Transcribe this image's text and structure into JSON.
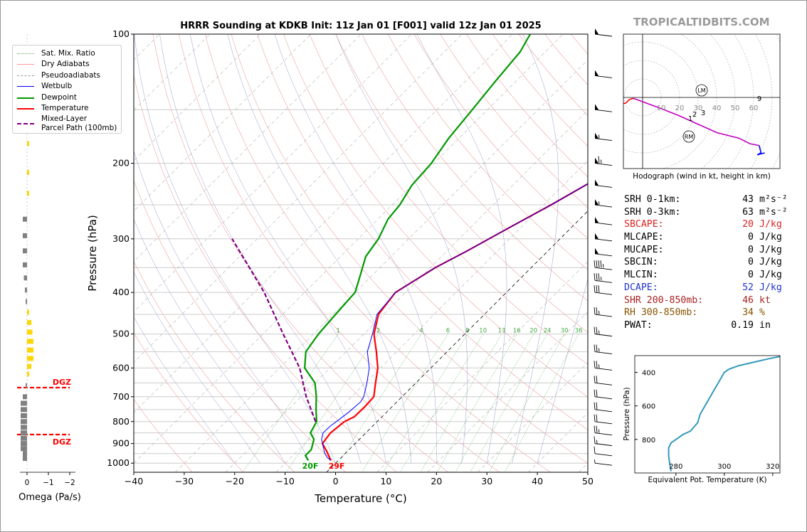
{
  "brand": "TROPICALTIDBITS.COM",
  "chart_data": [
    {
      "type": "line",
      "title": "HRRR Sounding at KDKB Init: 11z Jan 01 [F001] valid 12z Jan 01 2025",
      "xlabel": "Temperature (°C)",
      "ylabel": "Pressure (hPa)",
      "xlim": [
        -40,
        50
      ],
      "ylim": [
        1050,
        100
      ],
      "y_scale": "log",
      "x_ticks": [
        -40,
        -30,
        -20,
        -10,
        0,
        10,
        20,
        30,
        40,
        50
      ],
      "y_ticks": [
        100,
        200,
        300,
        400,
        500,
        600,
        700,
        800,
        900,
        1000
      ],
      "grid": true,
      "legend_position": "outside-left",
      "mixing_ratio_labels": [
        "1",
        "2",
        "4",
        "6",
        "8",
        "10",
        "13",
        "16",
        "20",
        "24",
        "30",
        "36"
      ],
      "surface_labels": {
        "dewpoint": "20F",
        "temperature": "29F"
      },
      "series": [
        {
          "name": "Temperature",
          "color": "#ff0000",
          "points": [
            [
              -1.5,
              985
            ],
            [
              -4,
              940
            ],
            [
              -6.5,
              900
            ],
            [
              -7,
              850
            ],
            [
              -6.5,
              800
            ],
            [
              -5.5,
              780
            ],
            [
              -5.4,
              740
            ],
            [
              -5.6,
              700
            ],
            [
              -8,
              650
            ],
            [
              -10.5,
              600
            ],
            [
              -14,
              550
            ],
            [
              -18,
              500
            ],
            [
              -21,
              450
            ],
            [
              -22,
              400
            ],
            [
              -19,
              350
            ],
            [
              -16,
              320
            ],
            [
              -12,
              280
            ],
            [
              -8.5,
              250
            ],
            [
              -5,
              220
            ],
            [
              -1,
              190
            ],
            [
              1,
              170
            ],
            [
              6,
              130
            ],
            [
              8,
              110
            ],
            [
              8.5,
              100
            ]
          ]
        },
        {
          "name": "Dewpoint",
          "color": "#009900",
          "points": [
            [
              -6,
              985
            ],
            [
              -7.5,
              960
            ],
            [
              -7.5,
              930
            ],
            [
              -9,
              880
            ],
            [
              -11,
              850
            ],
            [
              -12,
              800
            ],
            [
              -14.5,
              750
            ],
            [
              -17,
              700
            ],
            [
              -20,
              650
            ],
            [
              -25,
              600
            ],
            [
              -28,
              550
            ],
            [
              -29,
              500
            ],
            [
              -29.5,
              450
            ],
            [
              -30,
              400
            ],
            [
              -32,
              370
            ],
            [
              -35,
              330
            ],
            [
              -36,
              300
            ],
            [
              -38,
              270
            ],
            [
              -38.5,
              250
            ],
            [
              -40,
              225
            ],
            [
              -40.5,
              200
            ],
            [
              -42,
              175
            ],
            [
              -43,
              150
            ],
            [
              -44,
              130
            ],
            [
              -45,
              110
            ],
            [
              -46.5,
              100
            ]
          ]
        },
        {
          "name": "Wetbulb",
          "color": "#0000ff",
          "points": [
            [
              -1.5,
              985
            ],
            [
              -2.8,
              970
            ],
            [
              -4,
              950
            ],
            [
              -5.5,
              920
            ],
            [
              -7.5,
              880
            ],
            [
              -8.5,
              850
            ],
            [
              -8.4,
              820
            ],
            [
              -8.1,
              800
            ],
            [
              -7.5,
              760
            ],
            [
              -7.2,
              720
            ],
            [
              -7.6,
              700
            ],
            [
              -9.7,
              650
            ],
            [
              -12.2,
              600
            ],
            [
              -15.8,
              550
            ],
            [
              -18.3,
              500
            ],
            [
              -21.3,
              450
            ],
            [
              -22,
              400
            ],
            [
              -19,
              350
            ],
            [
              -16,
              320
            ],
            [
              -12,
              280
            ],
            [
              -8.5,
              250
            ],
            [
              -5,
              220
            ],
            [
              -1,
              190
            ],
            [
              1,
              170
            ],
            [
              6,
              130
            ],
            [
              8,
              110
            ],
            [
              8.5,
              100
            ]
          ]
        },
        {
          "name": "Mixed-Layer Parcel Path (100mb)",
          "color": "#800080",
          "dash": true,
          "points": [
            [
              -12.2,
              800
            ],
            [
              -19,
              700
            ],
            [
              -26,
              600
            ],
            [
              -36,
              500
            ],
            [
              -48,
              400
            ],
            [
              -65,
              300
            ]
          ]
        }
      ],
      "dgz_labels": [
        "DGZ",
        "DGZ"
      ],
      "wind_barbs": [
        {
          "p": 100,
          "kt": 50
        },
        {
          "p": 125,
          "kt": 50
        },
        {
          "p": 150,
          "kt": 50
        },
        {
          "p": 175,
          "kt": 55
        },
        {
          "p": 200,
          "kt": 65
        },
        {
          "p": 225,
          "kt": 50
        },
        {
          "p": 250,
          "kt": 55
        },
        {
          "p": 275,
          "kt": 50
        },
        {
          "p": 300,
          "kt": 50
        },
        {
          "p": 325,
          "kt": 50
        },
        {
          "p": 350,
          "kt": 45
        },
        {
          "p": 375,
          "kt": 35
        },
        {
          "p": 400,
          "kt": 30
        },
        {
          "p": 450,
          "kt": 25
        },
        {
          "p": 500,
          "kt": 25
        },
        {
          "p": 550,
          "kt": 25
        },
        {
          "p": 600,
          "kt": 25
        },
        {
          "p": 650,
          "kt": 20
        },
        {
          "p": 700,
          "kt": 20
        },
        {
          "p": 750,
          "kt": 20
        },
        {
          "p": 800,
          "kt": 20
        },
        {
          "p": 850,
          "kt": 25
        },
        {
          "p": 900,
          "kt": 15
        },
        {
          "p": 950,
          "kt": 10
        },
        {
          "p": 1000,
          "kt": 5
        }
      ]
    },
    {
      "type": "bar",
      "title": "",
      "xlabel": "Omega (Pa/s)",
      "x_ticks": [
        "0",
        "−1",
        "−2"
      ],
      "orientation": "horizontal",
      "bars": [
        {
          "p": 115,
          "v": -0.1,
          "color": "#ffd700"
        },
        {
          "p": 130,
          "v": -0.1,
          "color": "#ffd700"
        },
        {
          "p": 155,
          "v": -0.1,
          "color": "#ffd700"
        },
        {
          "p": 180,
          "v": -0.1,
          "color": "#ffd700"
        },
        {
          "p": 210,
          "v": -0.1,
          "color": "#ffd700"
        },
        {
          "p": 235,
          "v": -0.1,
          "color": "#ffd700"
        },
        {
          "p": 270,
          "v": 0.2,
          "color": "#808080"
        },
        {
          "p": 295,
          "v": 0.2,
          "color": "#808080"
        },
        {
          "p": 320,
          "v": 0.2,
          "color": "#808080"
        },
        {
          "p": 345,
          "v": 0.2,
          "color": "#808080"
        },
        {
          "p": 370,
          "v": 0.15,
          "color": "#808080"
        },
        {
          "p": 395,
          "v": 0.1,
          "color": "#808080"
        },
        {
          "p": 420,
          "v": 0.05,
          "color": "#808080"
        },
        {
          "p": 445,
          "v": -0.1,
          "color": "#ffd700"
        },
        {
          "p": 470,
          "v": -0.2,
          "color": "#ffd700"
        },
        {
          "p": 495,
          "v": -0.25,
          "color": "#ffd700"
        },
        {
          "p": 520,
          "v": -0.3,
          "color": "#ffd700"
        },
        {
          "p": 545,
          "v": -0.3,
          "color": "#ffd700"
        },
        {
          "p": 570,
          "v": -0.3,
          "color": "#ffd700"
        },
        {
          "p": 595,
          "v": -0.2,
          "color": "#ffd700"
        },
        {
          "p": 620,
          "v": -0.1,
          "color": "#ffd700"
        },
        {
          "p": 660,
          "v": 0.0,
          "color": "#808080"
        },
        {
          "p": 700,
          "v": 0.2,
          "color": "#808080"
        },
        {
          "p": 725,
          "v": 0.3,
          "color": "#808080"
        },
        {
          "p": 750,
          "v": 0.3,
          "color": "#808080"
        },
        {
          "p": 775,
          "v": 0.3,
          "color": "#808080"
        },
        {
          "p": 800,
          "v": 0.3,
          "color": "#808080"
        },
        {
          "p": 825,
          "v": 0.3,
          "color": "#808080"
        },
        {
          "p": 850,
          "v": 0.3,
          "color": "#808080"
        },
        {
          "p": 875,
          "v": 0.3,
          "color": "#808080"
        },
        {
          "p": 900,
          "v": 0.3,
          "color": "#808080"
        },
        {
          "p": 925,
          "v": 0.3,
          "color": "#808080"
        },
        {
          "p": 950,
          "v": 0.2,
          "color": "#808080"
        },
        {
          "p": 975,
          "v": 0.2,
          "color": "#808080"
        }
      ]
    },
    {
      "type": "line",
      "title": "Hodograph (wind in kt, height in km)",
      "ring_labels": [
        "10",
        "20",
        "30",
        "40",
        "50",
        "60"
      ],
      "markers": [
        "LM",
        "RM"
      ],
      "height_labels": [
        "1",
        "2",
        "3",
        "9"
      ],
      "series": [
        {
          "color": "#ff0000",
          "points": [
            [
              -14,
              4
            ],
            [
              -9,
              3
            ],
            [
              -7,
              1
            ]
          ]
        },
        {
          "color": "#ff0000",
          "points": [
            [
              -7,
              1
            ],
            [
              -5,
              0.5
            ]
          ]
        },
        {
          "color": "#c000c0",
          "points": [
            [
              -5,
              0.5
            ],
            [
              10,
              6
            ],
            [
              20,
              10
            ],
            [
              40,
              19
            ],
            [
              52,
              22
            ],
            [
              58,
              25
            ],
            [
              63,
              26
            ]
          ]
        },
        {
          "color": "#0000ff",
          "points": [
            [
              63,
              26
            ],
            [
              64,
              30
            ],
            [
              62,
              31
            ],
            [
              66,
              30
            ]
          ]
        }
      ]
    },
    {
      "type": "line",
      "title": "",
      "xlabel": "Equivalent Pot. Temperature (K)",
      "ylabel": "Pressure (hPa)",
      "xlim": [
        263,
        323
      ],
      "ylim": [
        1000,
        300
      ],
      "x_ticks": [
        280,
        300,
        320
      ],
      "y_ticks": [
        400,
        600,
        800
      ],
      "series": [
        {
          "color": "#3399bb",
          "points": [
            [
              278,
              990
            ],
            [
              277.5,
              950
            ],
            [
              277,
              900
            ],
            [
              277,
              850
            ],
            [
              278,
              820
            ],
            [
              280,
              800
            ],
            [
              283,
              770
            ],
            [
              286,
              750
            ],
            [
              289,
              700
            ],
            [
              290,
              650
            ],
            [
              292,
              600
            ],
            [
              294,
              550
            ],
            [
              296,
              500
            ],
            [
              298,
              450
            ],
            [
              300,
              400
            ],
            [
              302,
              380
            ],
            [
              306,
              360
            ],
            [
              312,
              340
            ],
            [
              318,
              320
            ],
            [
              323,
              305
            ]
          ]
        }
      ]
    }
  ],
  "legend": [
    {
      "label": "Sat. Mix. Ratio",
      "color": "#66aa66",
      "style": "dotted"
    },
    {
      "label": "Dry Adiabats",
      "color": "#ff9999",
      "style": "solid"
    },
    {
      "label": "Pseudoadiabats",
      "color": "#999999",
      "style": "dashed"
    },
    {
      "label": "Wetbulb",
      "color": "#0000ff",
      "style": "solid"
    },
    {
      "label": "Dewpoint",
      "color": "#009900",
      "style": "thick"
    },
    {
      "label": "Temperature",
      "color": "#ff0000",
      "style": "thick"
    },
    {
      "label": "Mixed-Layer",
      "label2": "Parcel Path (100mb)",
      "color": "#800080",
      "style": "thickdash"
    }
  ],
  "stats": [
    {
      "label": "SRH 0-1km:",
      "value": "43",
      "unit": "m²s⁻²",
      "color": "#000000"
    },
    {
      "label": "SRH 0-3km:",
      "value": "63",
      "unit": "m²s⁻²",
      "color": "#000000"
    },
    {
      "label": "SBCAPE:",
      "value": "20",
      "unit": "J/kg",
      "color": "#dd2222"
    },
    {
      "label": "MLCAPE:",
      "value": "0",
      "unit": "J/kg",
      "color": "#000000"
    },
    {
      "label": "MUCAPE:",
      "value": "0",
      "unit": "J/kg",
      "color": "#000000"
    },
    {
      "label": "SBCIN:",
      "value": "0",
      "unit": "J/kg",
      "color": "#000000"
    },
    {
      "label": "MLCIN:",
      "value": "0",
      "unit": "J/kg",
      "color": "#000000"
    },
    {
      "label": "DCAPE:",
      "value": "52",
      "unit": "J/kg",
      "color": "#2233cc"
    },
    {
      "label": "SHR 200-850mb:",
      "value": "46",
      "unit": "kt",
      "color": "#aa2222"
    },
    {
      "label": "RH 300-850mb:",
      "value": "34",
      "unit": "%",
      "color": "#885500"
    },
    {
      "label": "PWAT:",
      "value": "0.19",
      "unit": "in",
      "color": "#000000"
    }
  ]
}
